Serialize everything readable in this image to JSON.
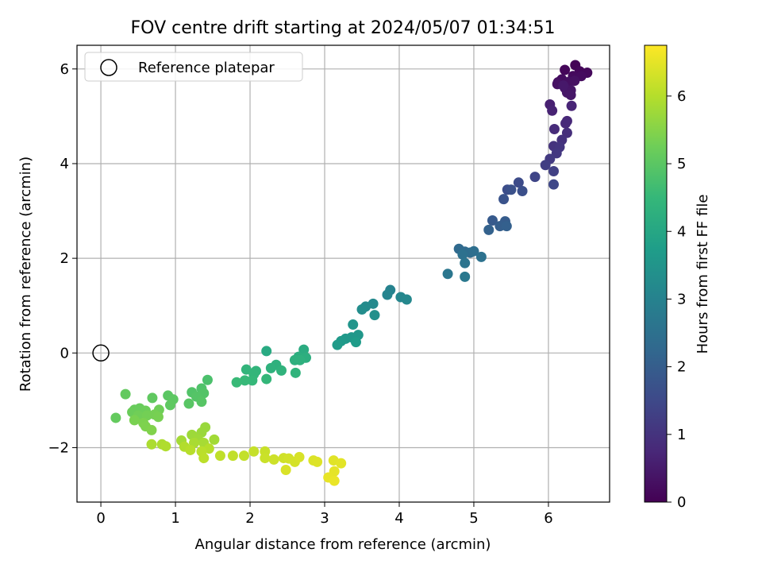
{
  "chart_data": {
    "type": "scatter",
    "title": "FOV centre drift starting at 2024/05/07 01:34:51",
    "xlabel": "Angular distance from reference (arcmin)",
    "ylabel": "Rotation from reference (arcmin)",
    "xlim": [
      -0.32,
      6.82
    ],
    "ylim": [
      -3.15,
      6.5
    ],
    "x_ticks": [
      0,
      1,
      2,
      3,
      4,
      5,
      6
    ],
    "y_ticks": [
      -2,
      0,
      2,
      4,
      6
    ],
    "x_tick_labels": [
      "0",
      "1",
      "2",
      "3",
      "4",
      "5",
      "6"
    ],
    "y_tick_labels": [
      "−2",
      "0",
      "2",
      "4",
      "6"
    ],
    "grid": true,
    "legend": {
      "placement": "top-left",
      "entries": [
        {
          "label": "Reference platepar",
          "marker": "open-circle"
        }
      ]
    },
    "reference_point": {
      "x": 0,
      "y": 0
    },
    "colorbar": {
      "label": "Hours from first FF file",
      "colormap": "viridis",
      "range": [
        0,
        6.75
      ],
      "ticks": [
        0,
        1,
        2,
        3,
        4,
        5,
        6
      ],
      "tick_labels": [
        "0",
        "1",
        "2",
        "3",
        "4",
        "5",
        "6"
      ]
    },
    "colormap_stops": [
      "#440154",
      "#482878",
      "#3e4989",
      "#31688e",
      "#26828e",
      "#1f9e89",
      "#35b779",
      "#6ece58",
      "#b5de2b",
      "#fde725"
    ],
    "points": [
      {
        "x": 6.36,
        "y": 6.08,
        "c": 0.05
      },
      {
        "x": 6.22,
        "y": 5.98,
        "c": 0.1
      },
      {
        "x": 6.42,
        "y": 5.95,
        "c": 0.12
      },
      {
        "x": 6.52,
        "y": 5.92,
        "c": 0.15
      },
      {
        "x": 6.33,
        "y": 5.85,
        "c": 0.18
      },
      {
        "x": 6.44,
        "y": 5.85,
        "c": 0.2
      },
      {
        "x": 6.18,
        "y": 5.78,
        "c": 0.22
      },
      {
        "x": 6.13,
        "y": 5.72,
        "c": 0.25
      },
      {
        "x": 6.28,
        "y": 5.73,
        "c": 0.27
      },
      {
        "x": 6.35,
        "y": 5.75,
        "c": 0.3
      },
      {
        "x": 6.12,
        "y": 5.68,
        "c": 0.32
      },
      {
        "x": 6.22,
        "y": 5.6,
        "c": 0.35
      },
      {
        "x": 6.3,
        "y": 5.55,
        "c": 0.38
      },
      {
        "x": 6.25,
        "y": 5.5,
        "c": 0.4
      },
      {
        "x": 6.3,
        "y": 5.45,
        "c": 0.42
      },
      {
        "x": 6.2,
        "y": 5.65,
        "c": 0.45
      },
      {
        "x": 6.02,
        "y": 5.25,
        "c": 0.6
      },
      {
        "x": 6.05,
        "y": 5.12,
        "c": 0.65
      },
      {
        "x": 6.31,
        "y": 5.22,
        "c": 0.7
      },
      {
        "x": 6.25,
        "y": 4.9,
        "c": 0.75
      },
      {
        "x": 6.23,
        "y": 4.85,
        "c": 0.8
      },
      {
        "x": 6.08,
        "y": 4.73,
        "c": 0.85
      },
      {
        "x": 6.25,
        "y": 4.65,
        "c": 0.9
      },
      {
        "x": 6.18,
        "y": 4.5,
        "c": 0.95
      },
      {
        "x": 6.07,
        "y": 4.37,
        "c": 1.0
      },
      {
        "x": 6.15,
        "y": 4.35,
        "c": 1.05
      },
      {
        "x": 6.11,
        "y": 4.22,
        "c": 1.1
      },
      {
        "x": 6.02,
        "y": 4.1,
        "c": 1.15
      },
      {
        "x": 5.96,
        "y": 3.97,
        "c": 1.25
      },
      {
        "x": 6.07,
        "y": 3.84,
        "c": 1.3
      },
      {
        "x": 5.82,
        "y": 3.72,
        "c": 1.4
      },
      {
        "x": 6.07,
        "y": 3.56,
        "c": 1.45
      },
      {
        "x": 5.6,
        "y": 3.6,
        "c": 1.55
      },
      {
        "x": 5.45,
        "y": 3.45,
        "c": 1.6
      },
      {
        "x": 5.65,
        "y": 3.42,
        "c": 1.65
      },
      {
        "x": 5.5,
        "y": 3.45,
        "c": 1.7
      },
      {
        "x": 5.4,
        "y": 3.25,
        "c": 1.75
      },
      {
        "x": 5.25,
        "y": 2.8,
        "c": 1.9
      },
      {
        "x": 5.42,
        "y": 2.78,
        "c": 1.95
      },
      {
        "x": 5.35,
        "y": 2.68,
        "c": 2.0
      },
      {
        "x": 5.44,
        "y": 2.68,
        "c": 2.05
      },
      {
        "x": 5.2,
        "y": 2.6,
        "c": 2.1
      },
      {
        "x": 4.8,
        "y": 2.2,
        "c": 2.3
      },
      {
        "x": 4.88,
        "y": 2.14,
        "c": 2.35
      },
      {
        "x": 4.95,
        "y": 2.12,
        "c": 2.4
      },
      {
        "x": 5.0,
        "y": 2.15,
        "c": 2.45
      },
      {
        "x": 4.85,
        "y": 2.08,
        "c": 2.5
      },
      {
        "x": 5.1,
        "y": 2.03,
        "c": 2.55
      },
      {
        "x": 4.65,
        "y": 1.67,
        "c": 2.65
      },
      {
        "x": 4.88,
        "y": 1.61,
        "c": 2.7
      },
      {
        "x": 4.88,
        "y": 1.9,
        "c": 2.6
      },
      {
        "x": 3.88,
        "y": 1.33,
        "c": 3.0
      },
      {
        "x": 3.84,
        "y": 1.23,
        "c": 3.05
      },
      {
        "x": 4.02,
        "y": 1.18,
        "c": 3.1
      },
      {
        "x": 4.1,
        "y": 1.13,
        "c": 3.15
      },
      {
        "x": 3.65,
        "y": 1.04,
        "c": 3.2
      },
      {
        "x": 3.55,
        "y": 0.98,
        "c": 3.25
      },
      {
        "x": 3.5,
        "y": 0.92,
        "c": 3.3
      },
      {
        "x": 3.67,
        "y": 0.8,
        "c": 3.35
      },
      {
        "x": 3.38,
        "y": 0.6,
        "c": 3.5
      },
      {
        "x": 3.45,
        "y": 0.38,
        "c": 3.55
      },
      {
        "x": 3.36,
        "y": 0.33,
        "c": 3.6
      },
      {
        "x": 3.28,
        "y": 0.3,
        "c": 3.62
      },
      {
        "x": 3.22,
        "y": 0.25,
        "c": 3.65
      },
      {
        "x": 3.17,
        "y": 0.17,
        "c": 3.68
      },
      {
        "x": 3.42,
        "y": 0.23,
        "c": 3.7
      },
      {
        "x": 2.22,
        "y": 0.04,
        "c": 4.1
      },
      {
        "x": 2.72,
        "y": 0.07,
        "c": 4.15
      },
      {
        "x": 2.65,
        "y": -0.08,
        "c": 4.2
      },
      {
        "x": 2.75,
        "y": -0.1,
        "c": 4.22
      },
      {
        "x": 2.6,
        "y": -0.15,
        "c": 4.25
      },
      {
        "x": 2.67,
        "y": -0.15,
        "c": 4.28
      },
      {
        "x": 2.35,
        "y": -0.25,
        "c": 4.3
      },
      {
        "x": 2.28,
        "y": -0.32,
        "c": 4.33
      },
      {
        "x": 2.42,
        "y": -0.37,
        "c": 4.35
      },
      {
        "x": 2.61,
        "y": -0.42,
        "c": 4.38
      },
      {
        "x": 2.08,
        "y": -0.38,
        "c": 4.4
      },
      {
        "x": 1.95,
        "y": -0.35,
        "c": 4.42
      },
      {
        "x": 2.05,
        "y": -0.45,
        "c": 4.45
      },
      {
        "x": 2.22,
        "y": -0.55,
        "c": 4.48
      },
      {
        "x": 2.03,
        "y": -0.58,
        "c": 4.5
      },
      {
        "x": 1.93,
        "y": -0.58,
        "c": 4.52
      },
      {
        "x": 1.82,
        "y": -0.62,
        "c": 4.55
      },
      {
        "x": 1.43,
        "y": -0.57,
        "c": 4.8
      },
      {
        "x": 1.35,
        "y": -0.75,
        "c": 4.85
      },
      {
        "x": 1.22,
        "y": -0.83,
        "c": 4.88
      },
      {
        "x": 1.38,
        "y": -0.85,
        "c": 4.9
      },
      {
        "x": 1.28,
        "y": -0.92,
        "c": 4.92
      },
      {
        "x": 1.35,
        "y": -1.03,
        "c": 4.95
      },
      {
        "x": 1.18,
        "y": -1.07,
        "c": 4.97
      },
      {
        "x": 0.9,
        "y": -0.9,
        "c": 5.0
      },
      {
        "x": 0.97,
        "y": -0.98,
        "c": 5.02
      },
      {
        "x": 0.93,
        "y": -1.1,
        "c": 5.05
      },
      {
        "x": 0.69,
        "y": -0.95,
        "c": 5.07
      },
      {
        "x": 0.33,
        "y": -0.87,
        "c": 5.1
      },
      {
        "x": 0.2,
        "y": -1.37,
        "c": 5.12
      },
      {
        "x": 0.45,
        "y": -1.2,
        "c": 5.15
      },
      {
        "x": 0.52,
        "y": -1.17,
        "c": 5.17
      },
      {
        "x": 0.42,
        "y": -1.25,
        "c": 5.2
      },
      {
        "x": 0.6,
        "y": -1.22,
        "c": 5.22
      },
      {
        "x": 0.78,
        "y": -1.2,
        "c": 5.25
      },
      {
        "x": 0.5,
        "y": -1.32,
        "c": 5.27
      },
      {
        "x": 0.62,
        "y": -1.32,
        "c": 5.3
      },
      {
        "x": 0.72,
        "y": -1.3,
        "c": 5.32
      },
      {
        "x": 0.77,
        "y": -1.35,
        "c": 5.35
      },
      {
        "x": 0.45,
        "y": -1.42,
        "c": 5.37
      },
      {
        "x": 0.57,
        "y": -1.48,
        "c": 5.4
      },
      {
        "x": 0.6,
        "y": -1.55,
        "c": 5.42
      },
      {
        "x": 0.68,
        "y": -1.63,
        "c": 5.45
      },
      {
        "x": 1.4,
        "y": -1.57,
        "c": 5.7
      },
      {
        "x": 1.35,
        "y": -1.68,
        "c": 5.72
      },
      {
        "x": 1.22,
        "y": -1.73,
        "c": 5.75
      },
      {
        "x": 1.3,
        "y": -1.82,
        "c": 5.77
      },
      {
        "x": 1.52,
        "y": -1.83,
        "c": 5.8
      },
      {
        "x": 1.08,
        "y": -1.85,
        "c": 5.82
      },
      {
        "x": 1.38,
        "y": -1.9,
        "c": 5.85
      },
      {
        "x": 1.25,
        "y": -1.9,
        "c": 5.87
      },
      {
        "x": 0.68,
        "y": -1.93,
        "c": 5.9
      },
      {
        "x": 0.82,
        "y": -1.93,
        "c": 5.92
      },
      {
        "x": 0.87,
        "y": -1.97,
        "c": 5.95
      },
      {
        "x": 1.12,
        "y": -1.98,
        "c": 5.97
      },
      {
        "x": 1.45,
        "y": -2.02,
        "c": 6.0
      },
      {
        "x": 1.2,
        "y": -2.05,
        "c": 6.02
      },
      {
        "x": 1.35,
        "y": -2.08,
        "c": 6.05
      },
      {
        "x": 1.38,
        "y": -2.22,
        "c": 6.07
      },
      {
        "x": 1.6,
        "y": -2.17,
        "c": 6.1
      },
      {
        "x": 1.77,
        "y": -2.17,
        "c": 6.12
      },
      {
        "x": 1.92,
        "y": -2.17,
        "c": 6.15
      },
      {
        "x": 2.05,
        "y": -2.08,
        "c": 6.17
      },
      {
        "x": 2.2,
        "y": -2.08,
        "c": 6.2
      },
      {
        "x": 2.2,
        "y": -2.22,
        "c": 6.22
      },
      {
        "x": 2.32,
        "y": -2.25,
        "c": 6.25
      },
      {
        "x": 2.45,
        "y": -2.22,
        "c": 6.27
      },
      {
        "x": 2.52,
        "y": -2.23,
        "c": 6.3
      },
      {
        "x": 2.6,
        "y": -2.3,
        "c": 6.32
      },
      {
        "x": 2.66,
        "y": -2.2,
        "c": 6.35
      },
      {
        "x": 2.48,
        "y": -2.47,
        "c": 6.37
      },
      {
        "x": 2.85,
        "y": -2.27,
        "c": 6.4
      },
      {
        "x": 2.9,
        "y": -2.3,
        "c": 6.42
      },
      {
        "x": 3.12,
        "y": -2.27,
        "c": 6.45
      },
      {
        "x": 3.22,
        "y": -2.33,
        "c": 6.47
      },
      {
        "x": 3.13,
        "y": -2.5,
        "c": 6.5
      },
      {
        "x": 3.05,
        "y": -2.63,
        "c": 6.52
      },
      {
        "x": 3.13,
        "y": -2.7,
        "c": 6.55
      }
    ]
  }
}
